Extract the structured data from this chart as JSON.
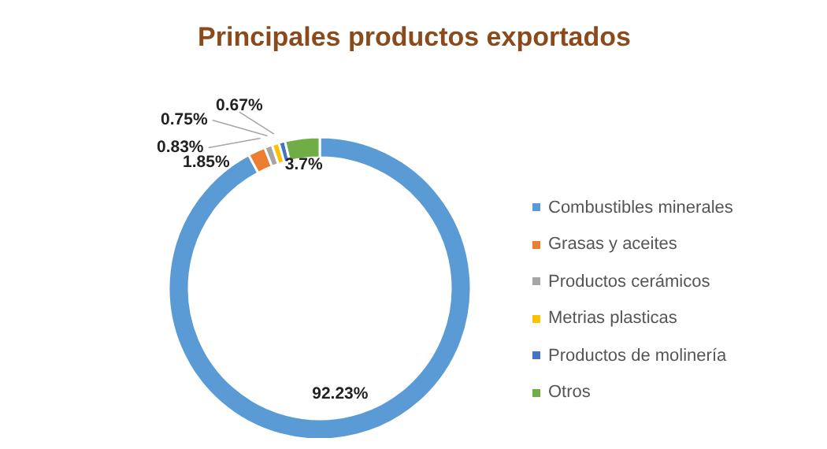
{
  "chart_data": {
    "type": "donut",
    "title": "Principales productos exportados",
    "categories": [
      "Combustibles minerales",
      "Grasas y aceites",
      "Productos cerámicos",
      "Metrias plasticas",
      "Productos de molinería",
      "Otros"
    ],
    "values": [
      92.23,
      1.85,
      0.83,
      0.75,
      0.67,
      3.7
    ],
    "colors": [
      "#5b9bd5",
      "#ed7d31",
      "#a5a5a5",
      "#ffc000",
      "#4472c4",
      "#70ad47"
    ],
    "value_labels": [
      "92.23%",
      "1.85%",
      "0.83%",
      "0.75%",
      "0.67%",
      "3.7%"
    ],
    "legend": "right"
  }
}
